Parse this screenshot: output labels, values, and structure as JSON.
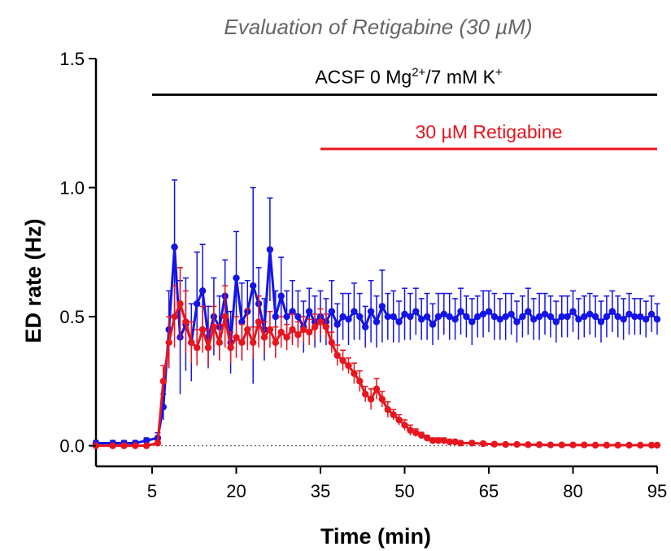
{
  "chart_data": {
    "type": "line",
    "title": "Evaluation of Retigabine (30 µM)",
    "xlabel": "Time (min)",
    "ylabel": "ED rate (Hz)",
    "xlim": [
      -5,
      95
    ],
    "ylim": [
      -0.08,
      1.5
    ],
    "xticks": [
      5,
      20,
      35,
      50,
      65,
      80,
      95
    ],
    "yticks": [
      0.0,
      0.5,
      1.0,
      1.5
    ],
    "ytick_labels": [
      "0.0",
      "0.5",
      "1.0",
      "1.5"
    ],
    "baseline": 0.0,
    "colors": {
      "control": "#1414e6",
      "retigabine": "#e8141e",
      "acsf_bar": "#000000"
    },
    "annotations": [
      {
        "id": "acsf",
        "text_parts": [
          "ACSF 0 Mg",
          "2+",
          "/7 mM K",
          "+"
        ],
        "x_start": 5,
        "x_end": 95,
        "y": 1.36,
        "color": "#000000"
      },
      {
        "id": "retigabine",
        "text": "30 µM Retigabine",
        "x_start": 35,
        "x_end": 95,
        "y": 1.15,
        "color": "#e8141e"
      }
    ],
    "series": [
      {
        "id": "control",
        "color": "#1414e6",
        "x": [
          -5,
          -2,
          0,
          2,
          4,
          6,
          7,
          8,
          9,
          10,
          11,
          12,
          13,
          14,
          15,
          16,
          17,
          18,
          19,
          20,
          21,
          22,
          23,
          24,
          25,
          26,
          27,
          28,
          29,
          30,
          31,
          32,
          33,
          34,
          35,
          36,
          37,
          38,
          39,
          40,
          41,
          42,
          43,
          44,
          45,
          46,
          47,
          48,
          49,
          50,
          51,
          52,
          53,
          54,
          55,
          56,
          57,
          58,
          59,
          60,
          61,
          62,
          63,
          64,
          65,
          66,
          67,
          68,
          69,
          70,
          71,
          72,
          73,
          74,
          75,
          76,
          77,
          78,
          79,
          80,
          81,
          82,
          83,
          84,
          85,
          86,
          87,
          88,
          89,
          90,
          91,
          92,
          93,
          94,
          95
        ],
        "y": [
          0.01,
          0.01,
          0.01,
          0.01,
          0.02,
          0.03,
          0.15,
          0.45,
          0.77,
          0.42,
          0.47,
          0.4,
          0.55,
          0.6,
          0.42,
          0.5,
          0.46,
          0.58,
          0.4,
          0.65,
          0.48,
          0.52,
          0.62,
          0.55,
          0.45,
          0.76,
          0.5,
          0.58,
          0.5,
          0.52,
          0.5,
          0.46,
          0.52,
          0.48,
          0.5,
          0.48,
          0.52,
          0.47,
          0.5,
          0.49,
          0.52,
          0.5,
          0.46,
          0.52,
          0.48,
          0.54,
          0.5,
          0.5,
          0.48,
          0.51,
          0.5,
          0.52,
          0.49,
          0.5,
          0.47,
          0.5,
          0.51,
          0.5,
          0.49,
          0.52,
          0.5,
          0.48,
          0.5,
          0.51,
          0.52,
          0.5,
          0.49,
          0.5,
          0.51,
          0.48,
          0.5,
          0.52,
          0.49,
          0.5,
          0.51,
          0.5,
          0.48,
          0.5,
          0.5,
          0.52,
          0.49,
          0.5,
          0.51,
          0.5,
          0.48,
          0.5,
          0.52,
          0.5,
          0.49,
          0.51,
          0.5,
          0.5,
          0.49,
          0.51,
          0.49
        ],
        "err": [
          0.01,
          0.01,
          0.01,
          0.01,
          0.01,
          0.02,
          0.05,
          0.15,
          0.26,
          0.22,
          0.18,
          0.15,
          0.2,
          0.18,
          0.12,
          0.15,
          0.12,
          0.14,
          0.12,
          0.18,
          0.15,
          0.12,
          0.38,
          0.14,
          0.12,
          0.2,
          0.1,
          0.15,
          0.1,
          0.12,
          0.1,
          0.1,
          0.09,
          0.1,
          0.1,
          0.09,
          0.12,
          0.08,
          0.09,
          0.1,
          0.11,
          0.09,
          0.08,
          0.12,
          0.1,
          0.14,
          0.09,
          0.1,
          0.08,
          0.1,
          0.09,
          0.09,
          0.08,
          0.09,
          0.08,
          0.09,
          0.08,
          0.09,
          0.08,
          0.09,
          0.08,
          0.09,
          0.08,
          0.09,
          0.08,
          0.09,
          0.08,
          0.09,
          0.08,
          0.08,
          0.08,
          0.09,
          0.08,
          0.09,
          0.08,
          0.08,
          0.08,
          0.08,
          0.08,
          0.08,
          0.08,
          0.08,
          0.08,
          0.08,
          0.08,
          0.08,
          0.08,
          0.08,
          0.08,
          0.08,
          0.07,
          0.07,
          0.07,
          0.07,
          0.06
        ]
      },
      {
        "id": "retigabine",
        "color": "#e8141e",
        "x": [
          -5,
          -2,
          0,
          2,
          4,
          6,
          7,
          8,
          9,
          10,
          11,
          12,
          13,
          14,
          15,
          16,
          17,
          18,
          19,
          20,
          21,
          22,
          23,
          24,
          25,
          26,
          27,
          28,
          29,
          30,
          31,
          32,
          33,
          34,
          35,
          36,
          37,
          38,
          39,
          40,
          41,
          42,
          43,
          44,
          45,
          46,
          47,
          48,
          49,
          50,
          51,
          52,
          53,
          54,
          55,
          56,
          57,
          58,
          59,
          60,
          62,
          64,
          66,
          68,
          70,
          72,
          74,
          76,
          78,
          80,
          82,
          84,
          86,
          88,
          90,
          92,
          94,
          95
        ],
        "y": [
          0.0,
          0.0,
          0.0,
          0.0,
          0.0,
          0.01,
          0.25,
          0.4,
          0.5,
          0.55,
          0.48,
          0.4,
          0.38,
          0.45,
          0.38,
          0.46,
          0.4,
          0.5,
          0.38,
          0.42,
          0.4,
          0.45,
          0.4,
          0.48,
          0.42,
          0.45,
          0.4,
          0.44,
          0.42,
          0.45,
          0.43,
          0.45,
          0.44,
          0.46,
          0.48,
          0.46,
          0.4,
          0.35,
          0.33,
          0.31,
          0.28,
          0.25,
          0.2,
          0.18,
          0.22,
          0.18,
          0.14,
          0.12,
          0.1,
          0.08,
          0.06,
          0.05,
          0.04,
          0.03,
          0.02,
          0.02,
          0.02,
          0.015,
          0.015,
          0.01,
          0.01,
          0.008,
          0.006,
          0.005,
          0.005,
          0.004,
          0.004,
          0.003,
          0.003,
          0.003,
          0.003,
          0.002,
          0.002,
          0.002,
          0.002,
          0.002,
          0.002,
          0.002
        ],
        "err": [
          0.005,
          0.005,
          0.005,
          0.005,
          0.005,
          0.01,
          0.06,
          0.1,
          0.12,
          0.14,
          0.12,
          0.08,
          0.07,
          0.09,
          0.07,
          0.08,
          0.07,
          0.12,
          0.06,
          0.08,
          0.07,
          0.08,
          0.06,
          0.1,
          0.06,
          0.07,
          0.06,
          0.06,
          0.05,
          0.06,
          0.05,
          0.05,
          0.05,
          0.05,
          0.05,
          0.05,
          0.04,
          0.04,
          0.04,
          0.03,
          0.04,
          0.04,
          0.03,
          0.04,
          0.04,
          0.03,
          0.03,
          0.02,
          0.02,
          0.02,
          0.02,
          0.015,
          0.012,
          0.01,
          0.01,
          0.01,
          0.01,
          0.008,
          0.008,
          0.006,
          0.008,
          0.006,
          0.006,
          0.005,
          0.005,
          0.005,
          0.004,
          0.004,
          0.004,
          0.004,
          0.004,
          0.003,
          0.003,
          0.003,
          0.003,
          0.003,
          0.003,
          0.003
        ]
      }
    ]
  }
}
